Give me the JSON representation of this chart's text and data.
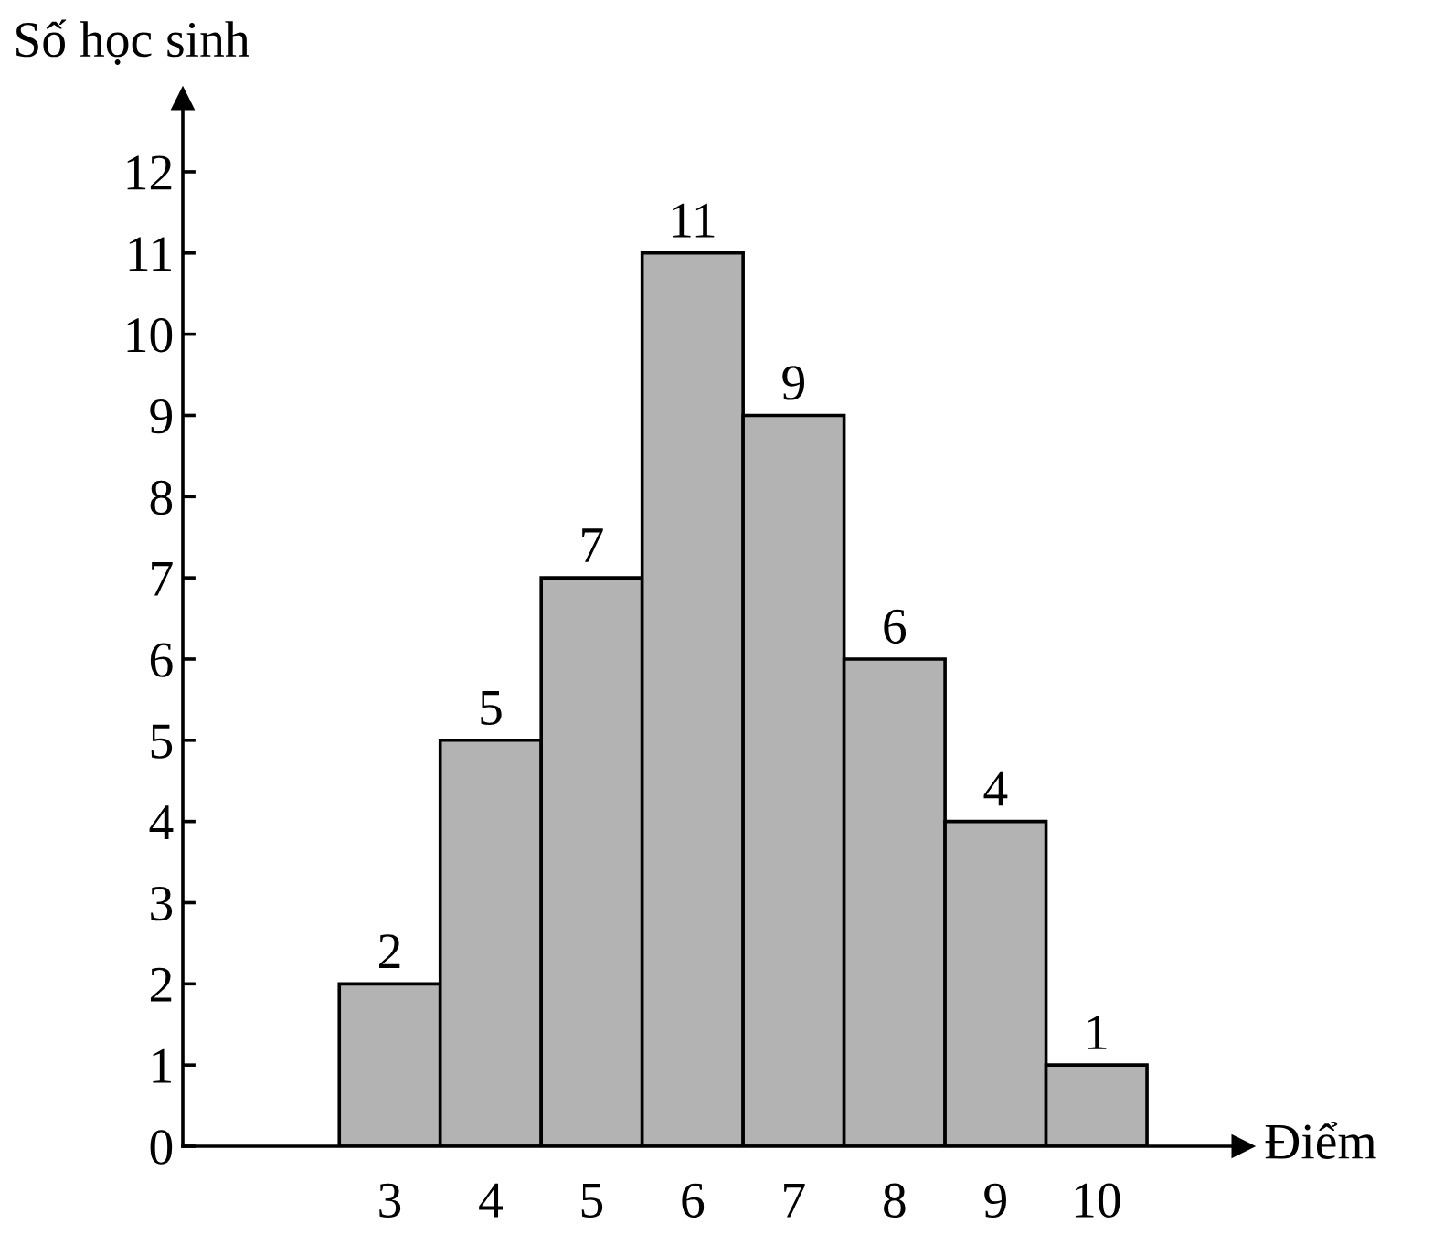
{
  "chart_data": {
    "type": "bar",
    "xlabel": "Điểm",
    "ylabel": "Số học sinh",
    "categories": [
      "3",
      "4",
      "5",
      "6",
      "7",
      "8",
      "9",
      "10"
    ],
    "values": [
      2,
      5,
      7,
      11,
      9,
      6,
      4,
      1
    ],
    "color": "#b3b3b3",
    "ylim": [
      0,
      12.9
    ],
    "yticks": [
      0,
      1,
      2,
      3,
      4,
      5,
      6,
      7,
      8,
      9,
      10,
      11,
      12
    ],
    "data_labels": true,
    "grid": false,
    "legend": false
  }
}
